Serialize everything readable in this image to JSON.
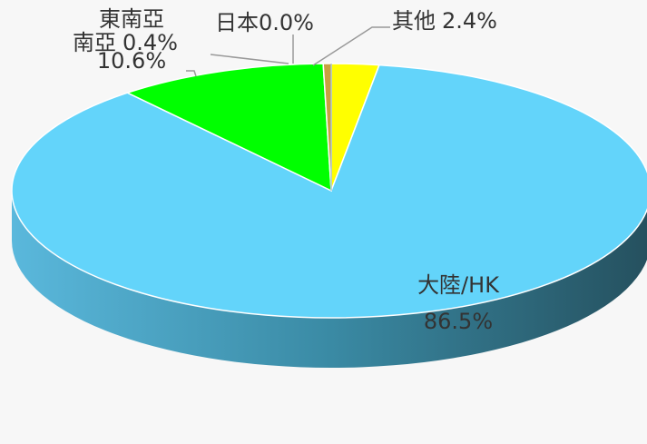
{
  "chart_data": {
    "type": "pie",
    "categories": [
      "其他",
      "大陸/HK",
      "東南亞",
      "南亞",
      "日本"
    ],
    "values": [
      2.4,
      86.5,
      10.6,
      0.4,
      0.0
    ],
    "value_labels": [
      "2.4%",
      "86.5%",
      "10.6%",
      "0.4%",
      "0.0%"
    ],
    "colors": [
      "#ffff00",
      "#63d4fa",
      "#00ff00",
      "#c8a040",
      "#7fa0a8"
    ]
  }
}
